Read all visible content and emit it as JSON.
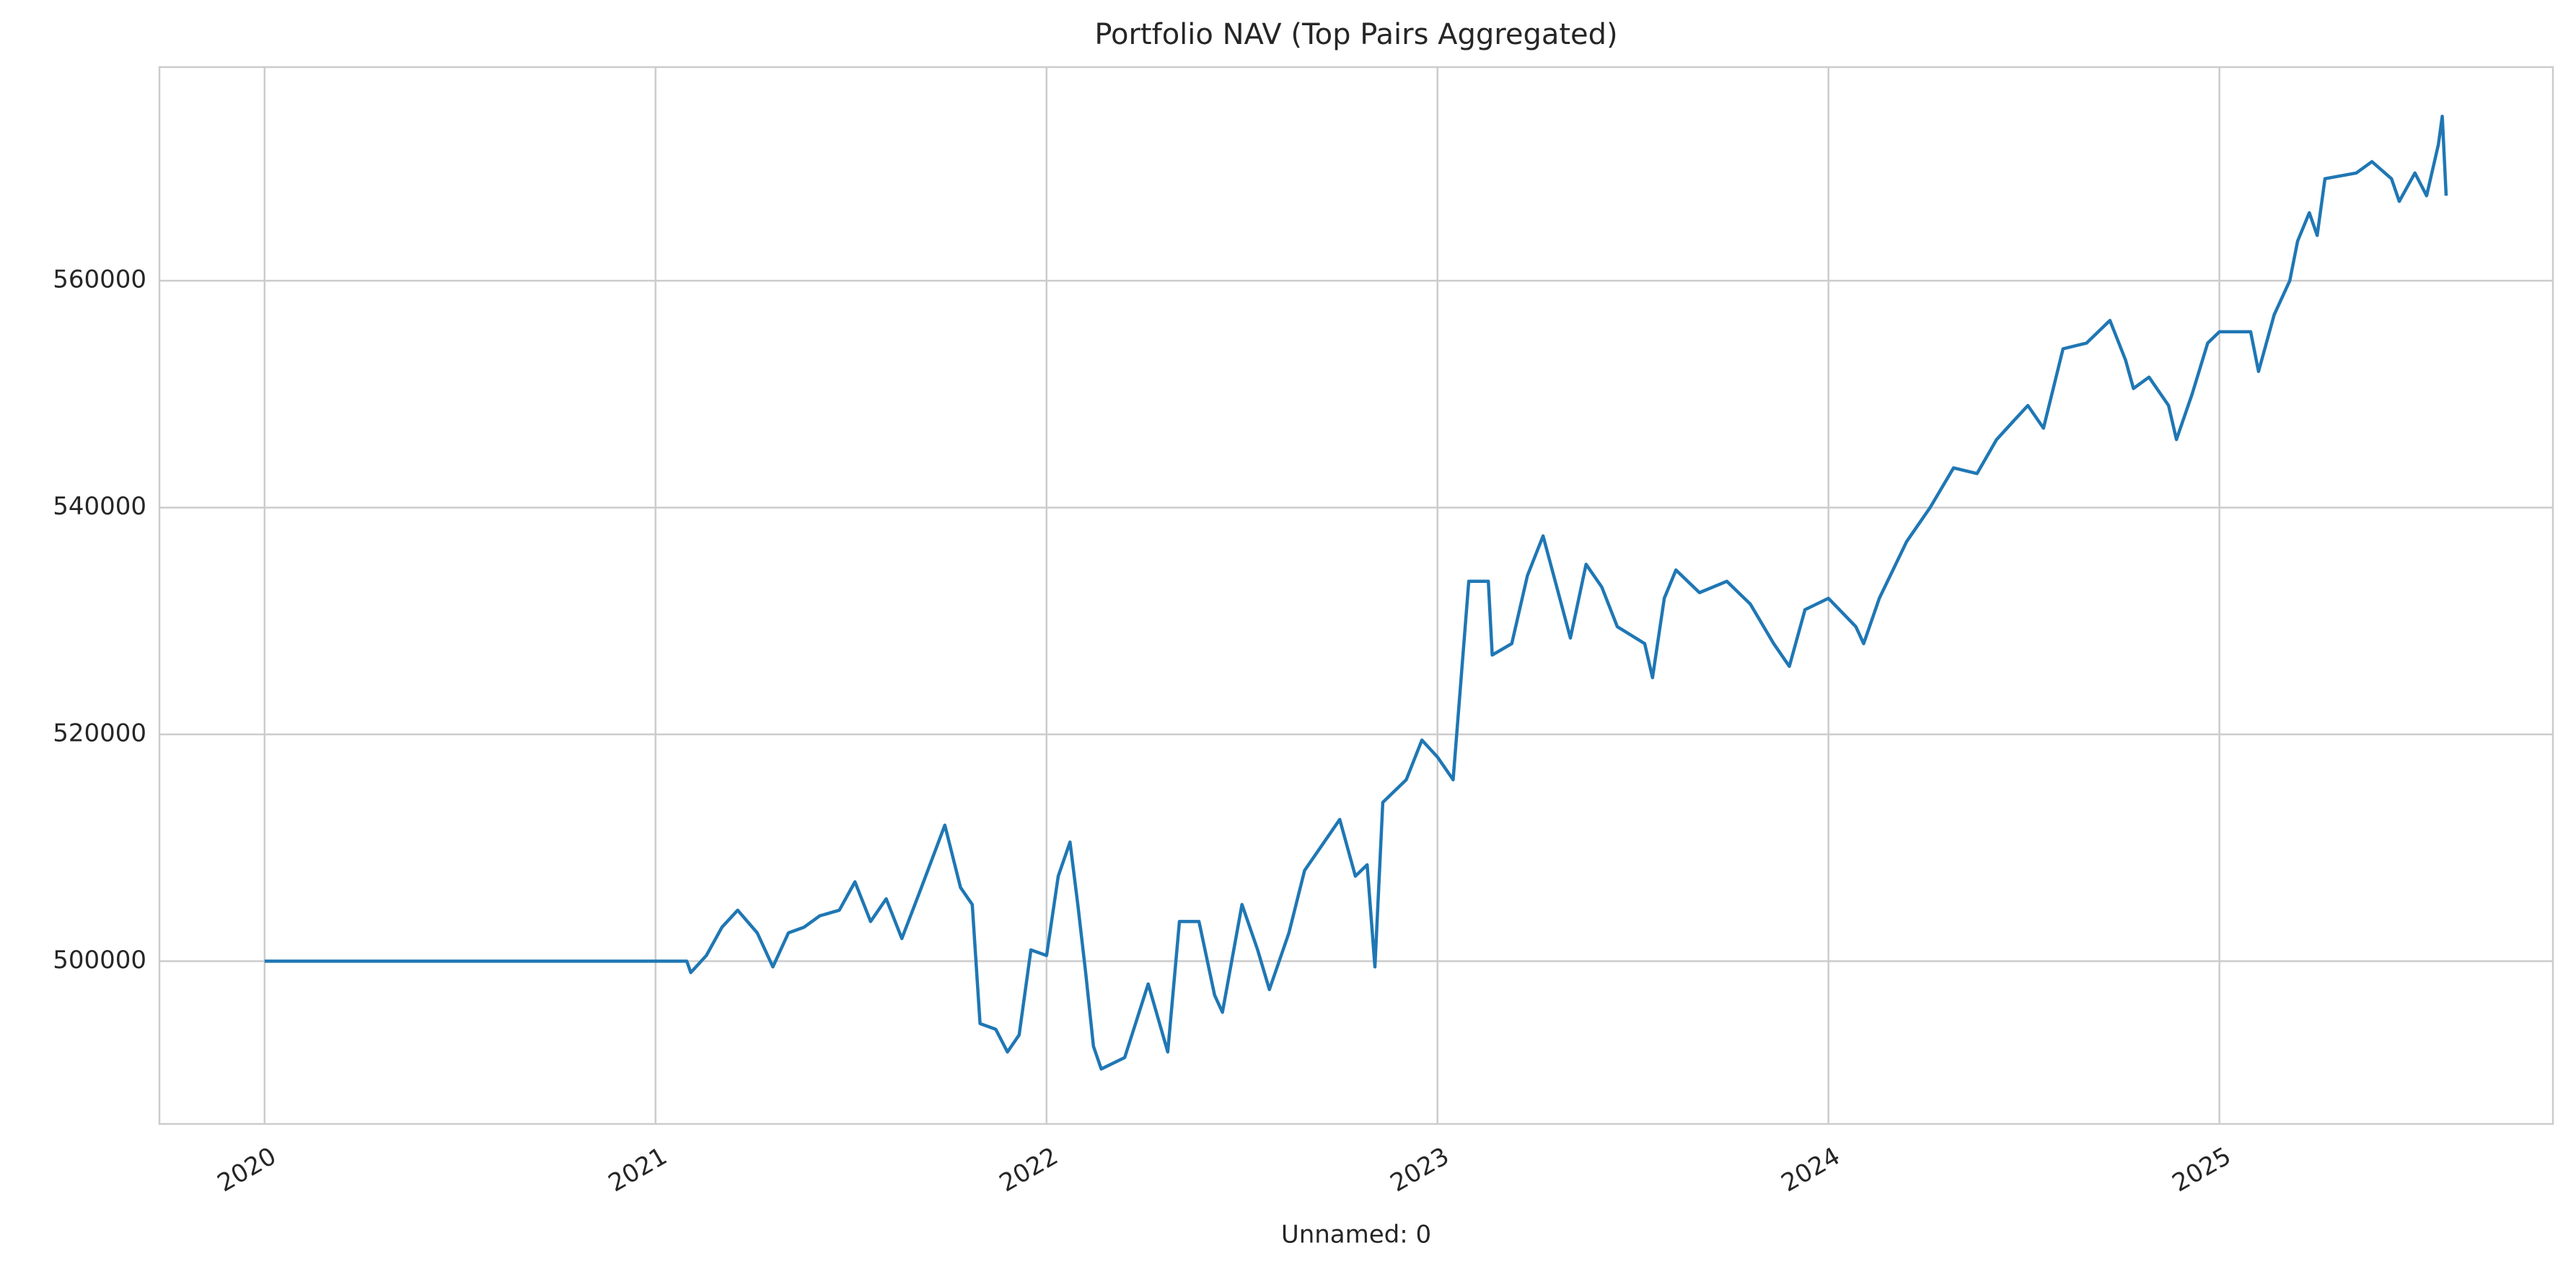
{
  "chart_data": {
    "type": "line",
    "title": "Portfolio NAV (Top Pairs Aggregated)",
    "x_label": "Unnamed: 0",
    "x": [
      2020.0,
      2021.08,
      2021.09,
      2021.13,
      2021.17,
      2021.21,
      2021.26,
      2021.3,
      2021.34,
      2021.38,
      2021.42,
      2021.47,
      2021.51,
      2021.55,
      2021.59,
      2021.63,
      2021.68,
      2021.74,
      2021.78,
      2021.81,
      2021.83,
      2021.87,
      2021.9,
      2021.93,
      2021.96,
      2022.0,
      2022.03,
      2022.06,
      2022.08,
      2022.1,
      2022.12,
      2022.14,
      2022.2,
      2022.26,
      2022.31,
      2022.34,
      2022.39,
      2022.43,
      2022.45,
      2022.5,
      2022.54,
      2022.57,
      2022.62,
      2022.66,
      2022.71,
      2022.75,
      2022.79,
      2022.82,
      2022.84,
      2022.86,
      2022.92,
      2022.96,
      2023.0,
      2023.04,
      2023.08,
      2023.13,
      2023.14,
      2023.19,
      2023.23,
      2023.27,
      2023.34,
      2023.38,
      2023.42,
      2023.46,
      2023.53,
      2023.55,
      2023.58,
      2023.61,
      2023.67,
      2023.74,
      2023.8,
      2023.86,
      2023.9,
      2023.94,
      2024.0,
      2024.07,
      2024.09,
      2024.13,
      2024.2,
      2024.26,
      2024.32,
      2024.38,
      2024.43,
      2024.47,
      2024.51,
      2024.55,
      2024.6,
      2024.66,
      2024.72,
      2024.76,
      2024.78,
      2024.82,
      2024.87,
      2024.89,
      2024.93,
      2024.97,
      2025.0,
      2025.08,
      2025.1,
      2025.14,
      2025.18,
      2025.2,
      2025.23,
      2025.25,
      2025.27,
      2025.35,
      2025.39,
      2025.44,
      2025.46,
      2025.5,
      2025.53,
      2025.56,
      2025.57,
      2025.58
    ],
    "series": [
      {
        "name": "NAV",
        "color": "#1f77b4",
        "values": [
          500000,
          500000,
          499000,
          500500,
          503000,
          504500,
          502500,
          499500,
          502500,
          503000,
          504000,
          504500,
          507000,
          503500,
          505500,
          502000,
          506500,
          512000,
          506500,
          505000,
          494500,
          494000,
          492000,
          493500,
          501000,
          500500,
          507500,
          510500,
          505000,
          499000,
          492500,
          490500,
          491500,
          498000,
          492000,
          503500,
          503500,
          497000,
          495500,
          505000,
          501000,
          497500,
          502500,
          508000,
          510500,
          512500,
          507500,
          508500,
          499500,
          514000,
          516000,
          519500,
          518000,
          516000,
          533500,
          533500,
          527000,
          528000,
          534000,
          537500,
          528500,
          535000,
          533000,
          529500,
          528000,
          525000,
          532000,
          534500,
          532500,
          533500,
          531500,
          528000,
          526000,
          531000,
          532000,
          529500,
          528000,
          532000,
          537000,
          540000,
          543500,
          543000,
          546000,
          547500,
          549000,
          547000,
          554000,
          554500,
          556500,
          553000,
          550500,
          551500,
          549000,
          546000,
          550000,
          554500,
          555500,
          555500,
          552000,
          557000,
          560000,
          563500,
          566000,
          564000,
          569000,
          569500,
          570500,
          569000,
          567000,
          569500,
          567500,
          572000,
          574500,
          567500
        ]
      }
    ],
    "xlim": [
      2019.731,
      2025.853
    ],
    "xticks": [
      2020,
      2021,
      2022,
      2023,
      2024,
      2025
    ],
    "ylim": [
      485650,
      578840
    ],
    "yticks": [
      500000,
      520000,
      540000,
      560000
    ],
    "grid": true
  }
}
